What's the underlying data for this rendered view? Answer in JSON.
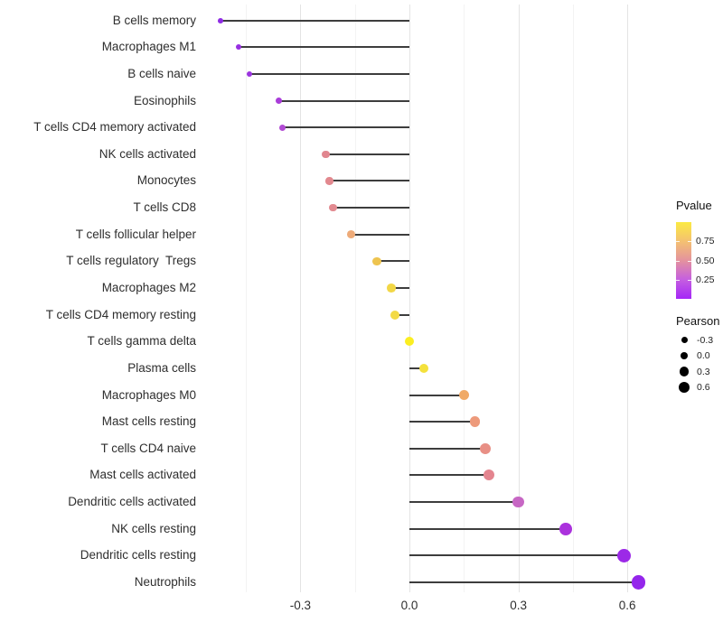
{
  "chart_data": {
    "type": "scatter",
    "style": "lollipop",
    "title": "",
    "xlabel": "",
    "ylabel": "",
    "xlim": [
      -0.565,
      0.715
    ],
    "grid": "vertical-only",
    "x_ticks": [
      -0.3,
      0.0,
      0.3,
      0.6
    ],
    "x_tick_labels": [
      "-0.3",
      "0.0",
      "0.3",
      "0.6"
    ],
    "x_minor_ticks": [
      -0.45,
      -0.15,
      0.15,
      0.45
    ],
    "categories": [
      "B cells memory",
      "Macrophages M1",
      "B cells naive",
      "Eosinophils",
      "T cells CD4 memory activated",
      "NK cells activated",
      "Monocytes",
      "T cells CD8",
      "T cells follicular helper",
      "T cells regulatory  Tregs",
      "Macrophages M2",
      "T cells CD4 memory resting",
      "T cells gamma delta",
      "Plasma cells",
      "Macrophages M0",
      "Mast cells resting",
      "T cells CD4 naive",
      "Mast cells activated",
      "Dendritic cells activated",
      "NK cells resting",
      "Dendritic cells resting",
      "Neutrophils"
    ],
    "series": [
      {
        "name": "Pearson",
        "values": [
          -0.52,
          -0.47,
          -0.44,
          -0.36,
          -0.35,
          -0.23,
          -0.22,
          -0.21,
          -0.16,
          -0.09,
          -0.05,
          -0.04,
          0.0,
          0.04,
          0.15,
          0.18,
          0.21,
          0.22,
          0.3,
          0.43,
          0.59,
          0.63
        ]
      }
    ],
    "point_colors": [
      "#8f2ce4",
      "#972fe1",
      "#9b34df",
      "#a93cd9",
      "#b24bd4",
      "#e1868f",
      "#e2888e",
      "#e28a90",
      "#eeab79",
      "#eec44f",
      "#f2d746",
      "#f3da45",
      "#fbee21",
      "#f4e13c",
      "#f0aa67",
      "#ed9a7b",
      "#e88f85",
      "#e4858f",
      "#c767c4",
      "#ab32dd",
      "#9c29e7",
      "#9426eb"
    ],
    "legend": {
      "pvalue": {
        "title": "Pvalue",
        "tick_labels": [
          "0.75",
          "0.50",
          "0.25"
        ],
        "gradient_top_to_bottom": [
          "#fbea42",
          "#f4c171",
          "#e4929e",
          "#c55fe0",
          "#a526f7"
        ]
      },
      "pearson": {
        "title": "Pearson",
        "entries": [
          {
            "label": "-0.3",
            "value": -0.3
          },
          {
            "label": "0.0",
            "value": 0.0
          },
          {
            "label": "0.3",
            "value": 0.3
          },
          {
            "label": "0.6",
            "value": 0.6
          }
        ],
        "dot_color": "#000000"
      }
    },
    "colors": {
      "stem": "#3d3d3d",
      "grid_major": "#e4e4e4",
      "grid_minor": "#f3f3f3",
      "axis_text": "#2e2e2e"
    }
  }
}
